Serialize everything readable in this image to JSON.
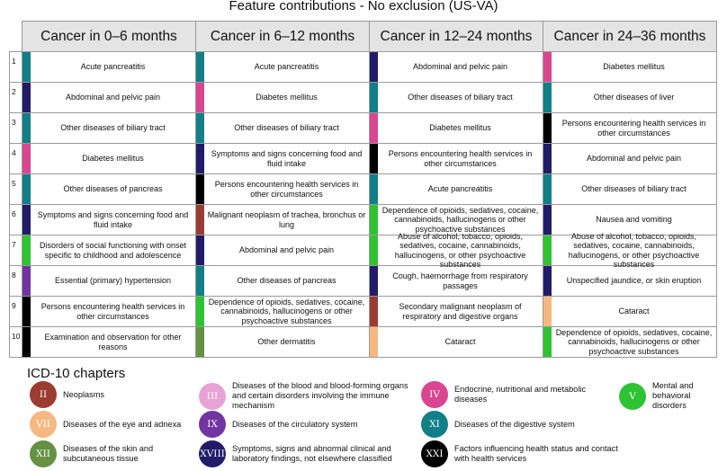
{
  "chart_data": {
    "type": "table",
    "title": "Feature contributions - No exclusion (US-VA)",
    "columns": [
      "Cancer in 0–6 months",
      "Cancer in 6–12 months",
      "Cancer in 12–24 months",
      "Cancer in 24–36 months"
    ],
    "ranks": [
      "1",
      "2",
      "3",
      "4",
      "5",
      "6",
      "7",
      "8",
      "9",
      "10"
    ],
    "rows": [
      [
        {
          "text": "Acute pancreatitis",
          "chapter": "XI"
        },
        {
          "text": "Acute pancreatitis",
          "chapter": "XI"
        },
        {
          "text": "Abdominal and pelvic pain",
          "chapter": "XVIII"
        },
        {
          "text": "Diabetes mellitus",
          "chapter": "IV"
        }
      ],
      [
        {
          "text": "Abdominal and pelvic pain",
          "chapter": "XVIII"
        },
        {
          "text": "Diabetes mellitus",
          "chapter": "IV"
        },
        {
          "text": "Other diseases of biliary tract",
          "chapter": "XI"
        },
        {
          "text": "Other diseases of liver",
          "chapter": "XI"
        }
      ],
      [
        {
          "text": "Other diseases of biliary tract",
          "chapter": "XI"
        },
        {
          "text": "Other diseases of biliary tract",
          "chapter": "XI"
        },
        {
          "text": "Diabetes mellitus",
          "chapter": "IV"
        },
        {
          "text": "Persons encountering health services in other circumstances",
          "chapter": "XXI"
        }
      ],
      [
        {
          "text": "Diabetes mellitus",
          "chapter": "IV"
        },
        {
          "text": "Symptoms and signs concerning food and fluid intake",
          "chapter": "XVIII"
        },
        {
          "text": "Persons encountering health services in other circumstances",
          "chapter": "XXI"
        },
        {
          "text": "Abdominal and pelvic pain",
          "chapter": "XVIII"
        }
      ],
      [
        {
          "text": "Other diseases of pancreas",
          "chapter": "XI"
        },
        {
          "text": "Persons encountering health services in other circumstances",
          "chapter": "XXI"
        },
        {
          "text": "Acute pancreatitis",
          "chapter": "XI"
        },
        {
          "text": "Other diseases of biliary tract",
          "chapter": "XI"
        }
      ],
      [
        {
          "text": "Symptoms and signs concerning food and fluid intake",
          "chapter": "XVIII"
        },
        {
          "text": "Malignant neoplasm of trachea, bronchus or lung",
          "chapter": "II"
        },
        {
          "text": "Dependence of opioids, sedatives, cocaine, cannabinoids, hallucinogens or other psychoactive substances",
          "chapter": "V"
        },
        {
          "text": "Nausea and vomiting",
          "chapter": "XVIII"
        }
      ],
      [
        {
          "text": "Disorders of social functioning with onset specific to childhood and adolescence",
          "chapter": "V"
        },
        {
          "text": "Abdominal and pelvic pain",
          "chapter": "XVIII"
        },
        {
          "text": "Abuse of alcohol, tobacco, opioids, sedatives, cocaine, cannabinoids, hallucinogens, or other psychoactive substances",
          "chapter": "V"
        },
        {
          "text": "Abuse of alcohol, tobacco, opioids, sedatives, cocaine, cannabinoids, hallucinogens, or other psychoactive substances",
          "chapter": "V"
        }
      ],
      [
        {
          "text": "Essential (primary) hypertension",
          "chapter": "IX"
        },
        {
          "text": "Other diseases of pancreas",
          "chapter": "XI"
        },
        {
          "text": "Cough, haemorrhage from respiratory passages",
          "chapter": "XVIII"
        },
        {
          "text": "Unspecified jaundice, or skin eruption",
          "chapter": "XVIII"
        }
      ],
      [
        {
          "text": "Persons encountering health services in other circumstances",
          "chapter": "XXI"
        },
        {
          "text": "Dependence of opioids, sedatives, cocaine, cannabinoids, hallucinogens or other psychoactive substances",
          "chapter": "V"
        },
        {
          "text": "Secondary malignant neoplasm of respiratory and digestive organs",
          "chapter": "II"
        },
        {
          "text": "Cataract",
          "chapter": "VII"
        }
      ],
      [
        {
          "text": "Examination and observation for other reasons",
          "chapter": "XXI"
        },
        {
          "text": "Other dermatitis",
          "chapter": "XII"
        },
        {
          "text": "Cataract",
          "chapter": "VII"
        },
        {
          "text": "Dependence of opioids, sedatives, cocaine, cannabinoids, hallucinogens or other psychoactive substances",
          "chapter": "V"
        }
      ]
    ],
    "legend": {
      "title": "ICD-10 chapters",
      "items": [
        {
          "numeral": "II",
          "label": "Neoplasms",
          "color": "#9b3c32"
        },
        {
          "numeral": "III",
          "label": "Diseases of the blood and blood-forming organs and certain disorders involving the immune mechanism",
          "color": "#e7a3d4"
        },
        {
          "numeral": "IV",
          "label": "Endocrine, nutritional and metabolic diseases",
          "color": "#d94691"
        },
        {
          "numeral": "V",
          "label": "Mental and behavioral disorders",
          "color": "#2ec332"
        },
        {
          "numeral": "VII",
          "label": "Diseases of the eye and adnexa",
          "color": "#f5b882"
        },
        {
          "numeral": "IX",
          "label": "Diseases of the circulatory system",
          "color": "#7035a0"
        },
        {
          "numeral": "XI",
          "label": "Diseases of the digestive system",
          "color": "#117f88"
        },
        {
          "numeral": "XII",
          "label": "Diseases of the skin and subcutaneous tissue",
          "color": "#669143"
        },
        {
          "numeral": "XVIII",
          "label": "Symptoms, signs and abnormal clinical and laboratory findings, not elsewhere classified",
          "color": "#221c68"
        },
        {
          "numeral": "XXI",
          "label": "Factors influencing health status and contact with health services",
          "color": "#000000"
        }
      ]
    }
  }
}
